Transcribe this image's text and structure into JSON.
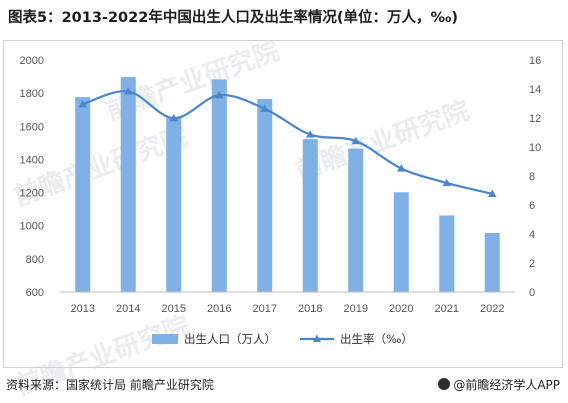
{
  "title": "图表5：2013-2022年中国出生人口及出生率情况(单位：万人，‰)",
  "footer": {
    "source": "资料来源：国家统计局 前瞻产业研究院",
    "brand": "@前瞻经济学人APP"
  },
  "watermark": "前瞻产业研究院",
  "colors": {
    "bar": "#7fb0e6",
    "line": "#4a86cc",
    "grid": "#e3e3e3"
  },
  "chart_data": {
    "type": "bar",
    "categories": [
      "2013",
      "2014",
      "2015",
      "2016",
      "2017",
      "2018",
      "2019",
      "2020",
      "2021",
      "2022"
    ],
    "series": [
      {
        "name": "出生人口（万人）",
        "type": "bar",
        "axis": "left",
        "values": [
          1776,
          1897,
          1655,
          1883,
          1765,
          1523,
          1465,
          1202,
          1062,
          956
        ]
      },
      {
        "name": "出生率（‰）",
        "type": "line",
        "axis": "right",
        "values": [
          12.95,
          13.83,
          11.99,
          13.57,
          12.64,
          10.86,
          10.41,
          8.52,
          7.52,
          6.77
        ]
      }
    ],
    "y_left": {
      "min": 600,
      "max": 2000,
      "ticks": [
        600,
        800,
        1000,
        1200,
        1400,
        1600,
        1800,
        2000
      ]
    },
    "y_right": {
      "min": 0,
      "max": 16,
      "ticks": [
        0,
        2,
        4,
        6,
        8,
        10,
        12,
        14,
        16
      ]
    },
    "grid": false,
    "legend": "bottom"
  }
}
